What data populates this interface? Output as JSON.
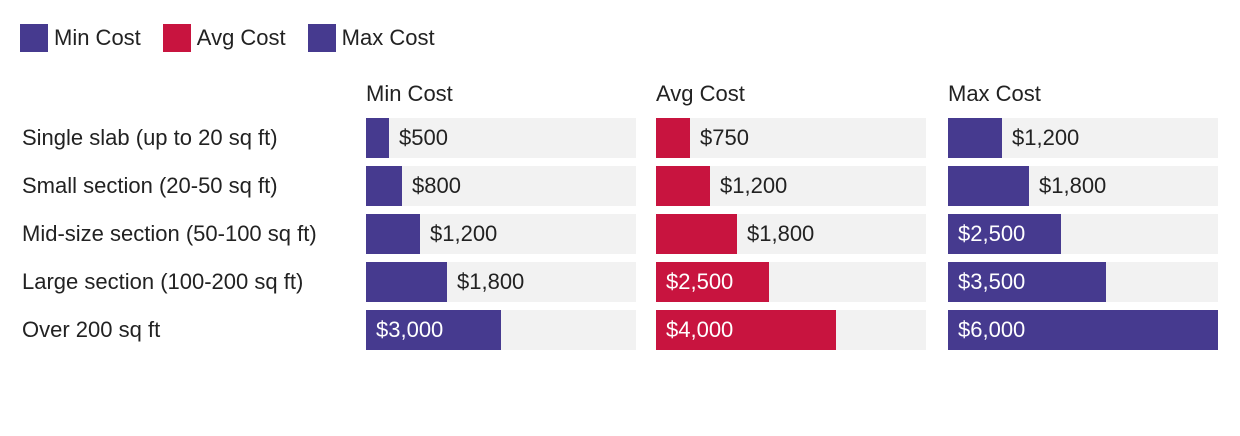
{
  "chart_data": {
    "type": "bar",
    "orientation": "horizontal",
    "legend": {
      "placement": "top-left",
      "entries": [
        {
          "label": "Min Cost",
          "color": "#463a8f"
        },
        {
          "label": "Avg Cost",
          "color": "#c8143f"
        },
        {
          "label": "Max Cost",
          "color": "#463a8f"
        }
      ]
    },
    "categories": [
      "Single slab (up to 20 sq ft)",
      "Small section (20-50 sq ft)",
      "Mid-size section (50-100 sq ft)",
      "Large section (100-200 sq ft)",
      "Over 200 sq ft"
    ],
    "series": [
      {
        "name": "Min Cost",
        "color": "#463a8f",
        "max": 6000,
        "values": [
          500,
          800,
          1200,
          1800,
          3000
        ],
        "labels": [
          "$500",
          "$800",
          "$1,200",
          "$1,800",
          "$3,000"
        ]
      },
      {
        "name": "Avg Cost",
        "color": "#c8143f",
        "max": 6000,
        "values": [
          750,
          1200,
          1800,
          2500,
          4000
        ],
        "labels": [
          "$750",
          "$1,200",
          "$1,800",
          "$2,500",
          "$4,000"
        ]
      },
      {
        "name": "Max Cost",
        "color": "#463a8f",
        "max": 6000,
        "values": [
          1200,
          1800,
          2500,
          3500,
          6000
        ],
        "labels": [
          "$1,200",
          "$1,800",
          "$2,500",
          "$3,500",
          "$6,000"
        ]
      }
    ],
    "grid": false
  }
}
